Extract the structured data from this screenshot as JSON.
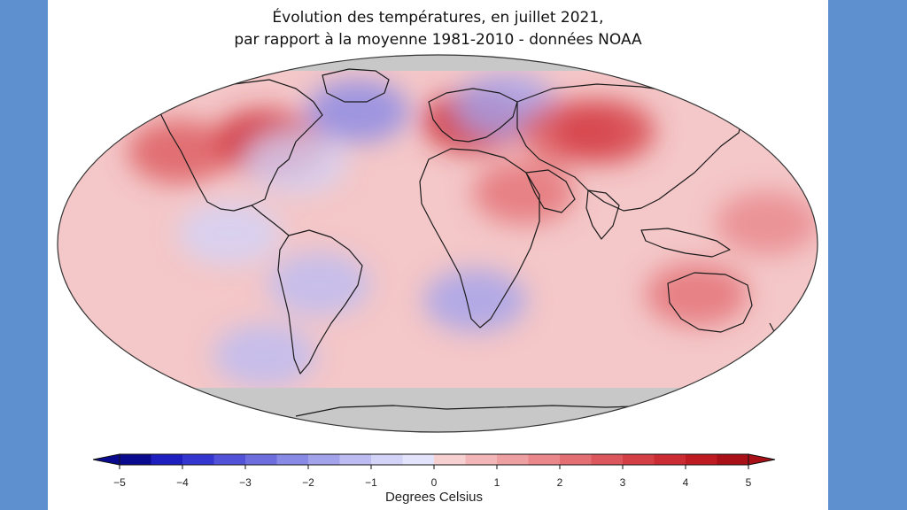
{
  "title_line1": "Évolution des températures, en juillet 2021,",
  "title_line2": "par rapport à la moyenne 1981-2010 - données NOAA",
  "colors": {
    "background": "#5e8fcf",
    "panel": "#ffffff",
    "ocean_base": "#f4c7c8",
    "no_data": "#c8c8c8",
    "land_outline": "#1a1a1a"
  },
  "colorbar": {
    "min": -5,
    "max": 5,
    "ticks": [
      "−5",
      "−4",
      "−3",
      "−2",
      "−1",
      "0",
      "1",
      "2",
      "3",
      "4",
      "5"
    ],
    "unit_label": "Degrees Celsius",
    "colors": [
      "#0a0a8e",
      "#1f1fbf",
      "#3535cf",
      "#5252d8",
      "#6d6dde",
      "#8989e6",
      "#a3a3ec",
      "#bcbcf2",
      "#d3d3f7",
      "#e3e3fb",
      "#f7d0d1",
      "#f2b6b8",
      "#ee9fa2",
      "#e9878b",
      "#e36f74",
      "#dc575d",
      "#d43f46",
      "#cb2b33",
      "#bd1a22",
      "#a80f17"
    ]
  },
  "map": {
    "projection": "robinson",
    "anomaly_patches": [
      {
        "lon": -120,
        "lat": 50,
        "v": 3.5
      },
      {
        "lon": -105,
        "lat": 47,
        "v": 3
      },
      {
        "lon": -75,
        "lat": 65,
        "v": -2.5
      },
      {
        "lon": -85,
        "lat": 40,
        "v": -1
      },
      {
        "lon": -165,
        "lat": 45,
        "v": 2.5
      },
      {
        "lon": 30,
        "lat": 60,
        "v": 3.5
      },
      {
        "lon": 70,
        "lat": 68,
        "v": -2
      },
      {
        "lon": 100,
        "lat": 55,
        "v": 2.5
      },
      {
        "lon": 125,
        "lat": 55,
        "v": 3
      },
      {
        "lon": 20,
        "lat": -28,
        "v": -2
      },
      {
        "lon": -60,
        "lat": -20,
        "v": -1.5
      },
      {
        "lon": 135,
        "lat": -25,
        "v": 2
      },
      {
        "lon": -130,
        "lat": -55,
        "v": -1.5
      },
      {
        "lon": -100,
        "lat": 5,
        "v": -1
      },
      {
        "lon": 45,
        "lat": 25,
        "v": 2
      },
      {
        "lon": 160,
        "lat": 10,
        "v": 1.5
      }
    ]
  }
}
